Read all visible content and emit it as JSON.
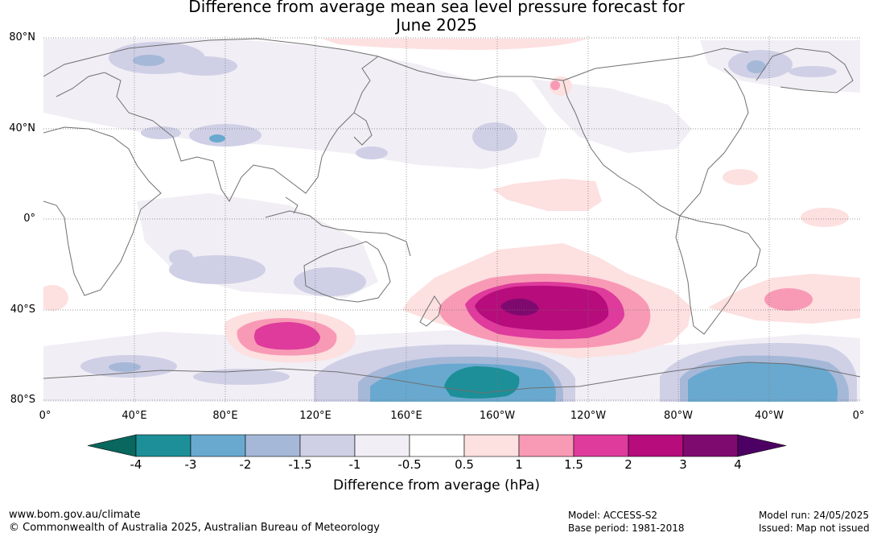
{
  "title_line1": "Difference from average mean sea level pressure forecast for",
  "title_line2": "June 2025",
  "lat_labels": [
    "80°N",
    "40°N",
    "0°",
    "40°S",
    "80°S"
  ],
  "lon_labels": [
    "0°",
    "40°E",
    "80°E",
    "120°E",
    "160°E",
    "160°W",
    "120°W",
    "80°W",
    "40°W",
    "0°"
  ],
  "legend": {
    "ticks": [
      "-4",
      "-3",
      "-2",
      "-1.5",
      "-1",
      "-0.5",
      "0.5",
      "1",
      "1.5",
      "2",
      "3",
      "4"
    ],
    "colors": [
      "#08675e",
      "#1d8f98",
      "#69a9d0",
      "#a6b8d8",
      "#cfd0e6",
      "#f1eef5",
      "#ffffff",
      "#fde0e0",
      "#f89ab5",
      "#de3b9c",
      "#b60c7c",
      "#7f0a6f",
      "#4d0063"
    ],
    "title": "Difference from average (hPa)"
  },
  "footer": {
    "website": "www.bom.gov.au/climate",
    "copyright": "© Commonwealth of Australia 2025, Australian Bureau of Meteorology",
    "model": "Model: ACCESS-S2",
    "base_period": "Base period: 1981-2018",
    "model_run": "Model run: 24/05/2025",
    "issued": "Issued: Map not issued"
  }
}
